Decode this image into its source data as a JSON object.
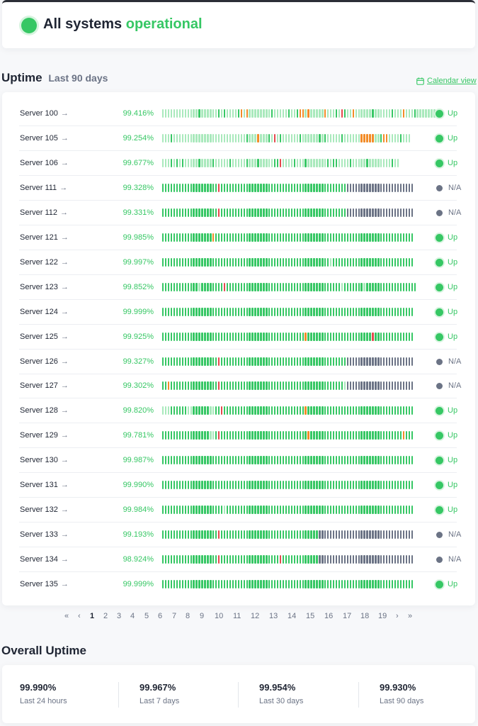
{
  "status": {
    "prefix": "All systems",
    "highlight": "operational"
  },
  "uptime": {
    "title": "Uptime",
    "subtitle": "Last 90 days",
    "calendar_link": "Calendar view"
  },
  "servers": [
    {
      "name": "Server 100",
      "uptime": "99.416%",
      "status": "Up",
      "segments": [
        [
          "l",
          13
        ],
        [
          "g",
          1
        ],
        [
          "l",
          6
        ],
        [
          "g",
          1
        ],
        [
          "l",
          1
        ],
        [
          "g",
          1
        ],
        [
          "l",
          4
        ],
        [
          "g",
          1
        ],
        [
          "o",
          1
        ],
        [
          "l",
          1
        ],
        [
          "o",
          1
        ],
        [
          "l",
          8
        ],
        [
          "g",
          1
        ],
        [
          "l",
          5
        ],
        [
          "g",
          1
        ],
        [
          "l",
          2
        ],
        [
          "g",
          1
        ],
        [
          "o",
          2
        ],
        [
          "l",
          1
        ],
        [
          "o",
          1
        ],
        [
          "l",
          5
        ],
        [
          "o",
          1
        ],
        [
          "l",
          3
        ],
        [
          "g",
          1
        ],
        [
          "l",
          1
        ],
        [
          "r",
          1
        ],
        [
          "g",
          1
        ],
        [
          "l",
          2
        ],
        [
          "o",
          1
        ],
        [
          "l",
          6
        ],
        [
          "g",
          1
        ],
        [
          "l",
          6
        ],
        [
          "g",
          1
        ],
        [
          "l",
          3
        ],
        [
          "o",
          1
        ],
        [
          "l",
          3
        ],
        [
          "g",
          1
        ],
        [
          "l",
          7
        ]
      ]
    },
    {
      "name": "Server 105",
      "uptime": "99.254%",
      "status": "Up",
      "segments": [
        [
          "l",
          3
        ],
        [
          "g",
          1
        ],
        [
          "l",
          26
        ],
        [
          "g",
          1
        ],
        [
          "l",
          3
        ],
        [
          "o",
          1
        ],
        [
          "l",
          3
        ],
        [
          "g",
          1
        ],
        [
          "l",
          1
        ],
        [
          "r",
          1
        ],
        [
          "l",
          1
        ],
        [
          "g",
          1
        ],
        [
          "l",
          6
        ],
        [
          "g",
          1
        ],
        [
          "l",
          6
        ],
        [
          "g",
          1
        ],
        [
          "l",
          1
        ],
        [
          "g",
          1
        ],
        [
          "l",
          5
        ],
        [
          "g",
          1
        ],
        [
          "l",
          6
        ],
        [
          "o",
          5
        ],
        [
          "l",
          2
        ],
        [
          "g",
          1
        ],
        [
          "o",
          2
        ],
        [
          "l",
          4
        ],
        [
          "g",
          1
        ],
        [
          "l",
          3
        ]
      ]
    },
    {
      "name": "Server 106",
      "uptime": "99.677%",
      "status": "Up",
      "segments": [
        [
          "l",
          3
        ],
        [
          "g",
          1
        ],
        [
          "l",
          1
        ],
        [
          "g",
          1
        ],
        [
          "l",
          1
        ],
        [
          "g",
          1
        ],
        [
          "l",
          5
        ],
        [
          "g",
          1
        ],
        [
          "l",
          4
        ],
        [
          "g",
          1
        ],
        [
          "l",
          5
        ],
        [
          "g",
          1
        ],
        [
          "l",
          5
        ],
        [
          "g",
          1
        ],
        [
          "l",
          3
        ],
        [
          "g",
          1
        ],
        [
          "l",
          5
        ],
        [
          "g",
          2
        ],
        [
          "r",
          1
        ],
        [
          "l",
          4
        ],
        [
          "g",
          1
        ],
        [
          "l",
          3
        ],
        [
          "g",
          1
        ],
        [
          "l",
          7
        ],
        [
          "g",
          1
        ],
        [
          "l",
          1
        ],
        [
          "g",
          2
        ],
        [
          "l",
          4
        ],
        [
          "g",
          1
        ],
        [
          "l",
          5
        ],
        [
          "g",
          1
        ],
        [
          "l",
          8
        ],
        [
          "g",
          1
        ],
        [
          "l",
          2
        ]
      ]
    },
    {
      "name": "Server 111",
      "uptime": "99.328%",
      "status": "N/A",
      "segments": [
        [
          "g",
          20
        ],
        [
          "r",
          1
        ],
        [
          "g",
          45
        ],
        [
          "n",
          24
        ]
      ]
    },
    {
      "name": "Server 112",
      "uptime": "99.331%",
      "status": "N/A",
      "segments": [
        [
          "g",
          20
        ],
        [
          "r",
          1
        ],
        [
          "g",
          45
        ],
        [
          "n",
          24
        ]
      ]
    },
    {
      "name": "Server 121",
      "uptime": "99.985%",
      "status": "Up",
      "segments": [
        [
          "g",
          18
        ],
        [
          "o",
          1
        ],
        [
          "g",
          71
        ]
      ]
    },
    {
      "name": "Server 122",
      "uptime": "99.997%",
      "status": "Up",
      "segments": [
        [
          "g",
          60
        ],
        [
          "l",
          1
        ],
        [
          "g",
          29
        ]
      ]
    },
    {
      "name": "Server 123",
      "uptime": "99.852%",
      "status": "Up",
      "segments": [
        [
          "g",
          13
        ],
        [
          "l",
          1
        ],
        [
          "g",
          8
        ],
        [
          "r",
          1
        ],
        [
          "g",
          41
        ],
        [
          "l",
          1
        ],
        [
          "g",
          7
        ],
        [
          "l",
          1
        ],
        [
          "g",
          18
        ]
      ]
    },
    {
      "name": "Server 124",
      "uptime": "99.999%",
      "status": "Up",
      "segments": [
        [
          "g",
          90
        ]
      ]
    },
    {
      "name": "Server 125",
      "uptime": "99.925%",
      "status": "Up",
      "segments": [
        [
          "g",
          51
        ],
        [
          "o",
          1
        ],
        [
          "g",
          23
        ],
        [
          "r",
          1
        ],
        [
          "g",
          14
        ]
      ]
    },
    {
      "name": "Server 126",
      "uptime": "99.327%",
      "status": "N/A",
      "segments": [
        [
          "g",
          20
        ],
        [
          "r",
          1
        ],
        [
          "g",
          45
        ],
        [
          "n",
          24
        ]
      ]
    },
    {
      "name": "Server 127",
      "uptime": "99.302%",
      "status": "N/A",
      "segments": [
        [
          "g",
          2
        ],
        [
          "o",
          1
        ],
        [
          "g",
          17
        ],
        [
          "r",
          1
        ],
        [
          "g",
          44
        ],
        [
          "l",
          1
        ],
        [
          "n",
          24
        ]
      ]
    },
    {
      "name": "Server 128",
      "uptime": "99.820%",
      "status": "Up",
      "segments": [
        [
          "l",
          3
        ],
        [
          "g",
          6
        ],
        [
          "l",
          2
        ],
        [
          "g",
          6
        ],
        [
          "l",
          2
        ],
        [
          "g",
          2
        ],
        [
          "r",
          1
        ],
        [
          "g",
          29
        ],
        [
          "o",
          1
        ],
        [
          "g",
          38
        ]
      ]
    },
    {
      "name": "Server 129",
      "uptime": "99.781%",
      "status": "Up",
      "segments": [
        [
          "g",
          17
        ],
        [
          "l",
          2
        ],
        [
          "g",
          1
        ],
        [
          "r",
          1
        ],
        [
          "g",
          31
        ],
        [
          "o",
          1
        ],
        [
          "g",
          33
        ],
        [
          "o",
          1
        ],
        [
          "g",
          3
        ]
      ]
    },
    {
      "name": "Server 130",
      "uptime": "99.987%",
      "status": "Up",
      "segments": [
        [
          "g",
          90
        ]
      ]
    },
    {
      "name": "Server 131",
      "uptime": "99.990%",
      "status": "Up",
      "segments": [
        [
          "g",
          90
        ]
      ]
    },
    {
      "name": "Server 132",
      "uptime": "99.984%",
      "status": "Up",
      "segments": [
        [
          "g",
          22
        ],
        [
          "l",
          1
        ],
        [
          "g",
          67
        ]
      ]
    },
    {
      "name": "Server 133",
      "uptime": "99.193%",
      "status": "N/A",
      "segments": [
        [
          "g",
          20
        ],
        [
          "r",
          1
        ],
        [
          "g",
          35
        ],
        [
          "n",
          34
        ]
      ]
    },
    {
      "name": "Server 134",
      "uptime": "98.924%",
      "status": "N/A",
      "segments": [
        [
          "g",
          20
        ],
        [
          "r",
          1
        ],
        [
          "g",
          21
        ],
        [
          "r",
          1
        ],
        [
          "g",
          13
        ],
        [
          "n",
          34
        ]
      ]
    },
    {
      "name": "Server 135",
      "uptime": "99.999%",
      "status": "Up",
      "segments": [
        [
          "g",
          90
        ]
      ]
    }
  ],
  "bar_colors": {
    "g": "#36c764",
    "l": "#a9e9bc",
    "o": "#f28c28",
    "r": "#e5484d",
    "n": "#6b7385"
  },
  "pagination": {
    "first": "«",
    "prev": "‹",
    "pages": [
      "1",
      "2",
      "3",
      "4",
      "5",
      "6",
      "7",
      "8",
      "9",
      "10",
      "11",
      "12",
      "13",
      "14",
      "15",
      "16",
      "17",
      "18",
      "19"
    ],
    "current": "1",
    "next": "›",
    "last": "»"
  },
  "overall": {
    "title": "Overall Uptime",
    "metrics": [
      {
        "value": "99.990%",
        "label": "Last 24 hours"
      },
      {
        "value": "99.967%",
        "label": "Last 7 days"
      },
      {
        "value": "99.954%",
        "label": "Last 30 days"
      },
      {
        "value": "99.930%",
        "label": "Last 90 days"
      }
    ]
  }
}
